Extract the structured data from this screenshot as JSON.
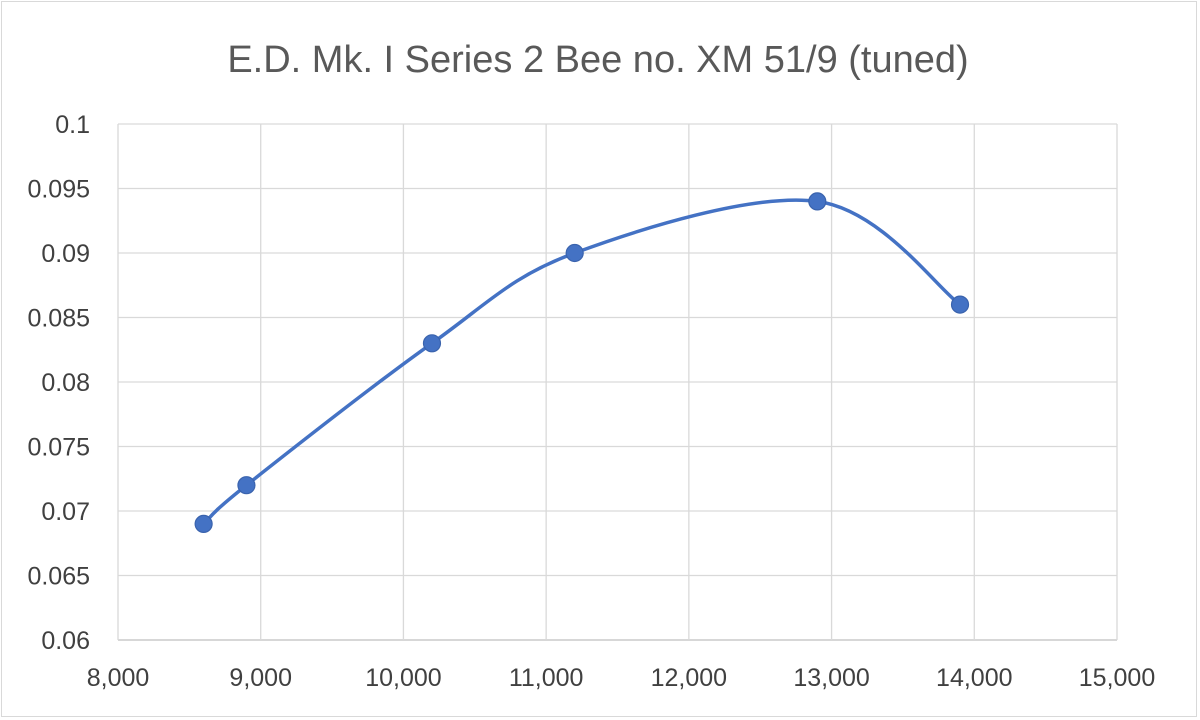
{
  "chart_data": {
    "type": "scatter",
    "title": "E.D. Mk. I Series 2 Bee no. XM 51/9 (tuned)",
    "xlabel": "",
    "ylabel": "",
    "xlim": [
      8000,
      15000
    ],
    "ylim": [
      0.06,
      0.1
    ],
    "x_ticks": [
      "8,000",
      "9,000",
      "10,000",
      "11,000",
      "12,000",
      "13,000",
      "14,000",
      "15,000"
    ],
    "y_ticks": [
      "0.06",
      "0.065",
      "0.07",
      "0.075",
      "0.08",
      "0.085",
      "0.09",
      "0.095",
      "0.1"
    ],
    "grid": true,
    "smooth_line": true,
    "series": [
      {
        "color": "#4472c4",
        "points": [
          {
            "x": 8600,
            "y": 0.069
          },
          {
            "x": 8900,
            "y": 0.072
          },
          {
            "x": 10200,
            "y": 0.083
          },
          {
            "x": 11200,
            "y": 0.09
          },
          {
            "x": 12900,
            "y": 0.094
          },
          {
            "x": 13900,
            "y": 0.086
          }
        ]
      }
    ]
  }
}
